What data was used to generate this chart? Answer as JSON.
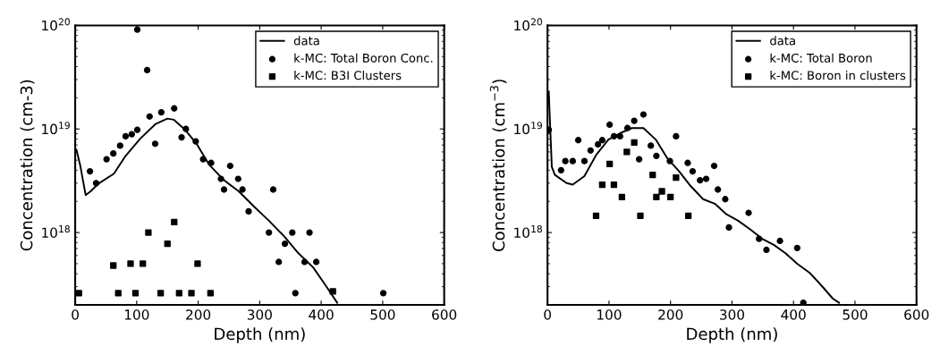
{
  "chart_data": [
    {
      "type": "line",
      "xlabel": "Depth (nm)",
      "ylabel": "Concentration (cm-3)",
      "log": "y",
      "xlim": [
        0,
        600
      ],
      "xticks": [
        0,
        100,
        200,
        300,
        400,
        500,
        600
      ],
      "ylim": [
        2e+17,
        1e+20
      ],
      "yticks": [
        {
          "value": 1e+18,
          "label": "10$^{18}$"
        },
        {
          "value": 1e+19,
          "label": "10$^{19}$"
        },
        {
          "value": 1e+20,
          "label": "10$^{20}$"
        }
      ],
      "grid": false,
      "legend": "top right",
      "series": [
        {
          "name": "data",
          "color": "#000000",
          "line_style": "solid",
          "marker": "none",
          "x": [
            2,
            8,
            17,
            25,
            39,
            63,
            82,
            106,
            131,
            150,
            160,
            179,
            198,
            218,
            242,
            266,
            290,
            315,
            339,
            363,
            387,
            407,
            426
          ],
          "values": [
            6.3e+18,
            4.5e+18,
            2.3e+18,
            2.5e+18,
            3e+18,
            3.7e+18,
            5.5e+18,
            8.1e+18,
            1.12e+19,
            1.26e+19,
            1.23e+19,
            9.8e+18,
            7.1e+18,
            4.5e+18,
            3.2e+18,
            2.5e+18,
            1.8e+18,
            1.3e+18,
            9.3e+17,
            6.3e+17,
            4.6e+17,
            3.1e+17,
            2.1e+17
          ]
        },
        {
          "name": "k-MC: Total Boron Conc.",
          "type": "scatter",
          "color": "#000000",
          "marker": "circle",
          "x": [
            24,
            34,
            51,
            62,
            73,
            82,
            92,
            101,
            101,
            117,
            121,
            130,
            140,
            161,
            173,
            180,
            196,
            208,
            221,
            237,
            242,
            252,
            265,
            272,
            282,
            315,
            322,
            331,
            341,
            353,
            358,
            373,
            381,
            392,
            416,
            501
          ],
          "values": [
            3.9e+18,
            3e+18,
            5.1e+18,
            5.8e+18,
            6.9e+18,
            8.5e+18,
            8.9e+18,
            9.8e+18,
            9.1e+19,
            3.7e+19,
            1.32e+19,
            7.2e+18,
            1.45e+19,
            1.58e+19,
            8.3e+18,
            1e+19,
            7.6e+18,
            5.1e+18,
            4.7e+18,
            3.3e+18,
            2.6e+18,
            4.4e+18,
            3.3e+18,
            2.6e+18,
            1.6e+18,
            1e+18,
            2.6e+18,
            5.2e+17,
            7.8e+17,
            1e+18,
            2.6e+17,
            5.2e+17,
            1e+18,
            5.2e+17,
            null,
            2.6e+17
          ]
        },
        {
          "name": "k-MC: B3I Clusters",
          "type": "scatter",
          "color": "#000000",
          "marker": "square",
          "x": [
            6,
            62,
            70,
            90,
            98,
            110,
            119,
            139,
            150,
            161,
            169,
            189,
            199,
            220,
            419
          ],
          "values": [
            2.6e+17,
            4.8e+17,
            2.6e+17,
            5e+17,
            2.6e+17,
            5e+17,
            1e+18,
            2.6e+17,
            7.8e+17,
            1.26e+18,
            2.6e+17,
            2.6e+17,
            5e+17,
            2.6e+17,
            2.7e+17
          ]
        }
      ]
    },
    {
      "type": "line",
      "xlabel": "Depth (nm)",
      "ylabel": "Concentration (cm$^{−3}$)",
      "log": "y",
      "xlim": [
        0,
        600
      ],
      "xticks": [
        0,
        100,
        200,
        300,
        400,
        500,
        600
      ],
      "ylim": [
        2e+17,
        1e+20
      ],
      "yticks": [
        {
          "value": 1e+18,
          "label": "10$^{18}$"
        },
        {
          "value": 1e+19,
          "label": "10$^{19}$"
        },
        {
          "value": 1e+20,
          "label": "10$^{20}$"
        }
      ],
      "grid": false,
      "legend": "top right",
      "series": [
        {
          "name": "data",
          "color": "#000000",
          "line_style": "solid",
          "marker": "none",
          "x": [
            2,
            7,
            12,
            31,
            41,
            60,
            79,
            99,
            118,
            137,
            156,
            176,
            195,
            214,
            233,
            253,
            272,
            291,
            310,
            330,
            349,
            368,
            387,
            406,
            426,
            445,
            464,
            474
          ],
          "values": [
            2.3e+19,
            4.3e+18,
            3.6e+18,
            3e+18,
            2.9e+18,
            3.5e+18,
            5.6e+18,
            7.9e+18,
            9.1e+18,
            1.02e+19,
            1.02e+19,
            7.9e+18,
            5.2e+18,
            3.9e+18,
            2.8e+18,
            2.1e+18,
            1.9e+18,
            1.5e+18,
            1.3e+18,
            1.07e+18,
            8.7e+17,
            7.6e+17,
            6.3e+17,
            5e+17,
            4.1e+17,
            3.1e+17,
            2.3e+17,
            2.1e+17
          ]
        },
        {
          "name": "k-MC: Total Boron",
          "type": "scatter",
          "color": "#000000",
          "marker": "circle",
          "x": [
            2,
            22,
            29,
            41,
            50,
            60,
            70,
            82,
            89,
            101,
            108,
            118,
            130,
            141,
            149,
            156,
            168,
            177,
            199,
            209,
            228,
            236,
            248,
            258,
            271,
            277,
            289,
            295,
            327,
            344,
            356,
            378,
            406,
            416
          ],
          "values": [
            9.8e+18,
            4e+18,
            4.9e+18,
            4.9e+18,
            7.8e+18,
            4.9e+18,
            6.2e+18,
            7.1e+18,
            7.8e+18,
            1.1e+19,
            8.5e+18,
            8.5e+18,
            1.02e+19,
            1.2e+19,
            5.1e+18,
            1.38e+19,
            6.9e+18,
            5.5e+18,
            4.9e+18,
            8.5e+18,
            4.7e+18,
            3.9e+18,
            3.2e+18,
            3.3e+18,
            4.4e+18,
            2.6e+18,
            2.1e+18,
            1.12e+18,
            1.55e+18,
            8.7e+17,
            6.8e+17,
            8.3e+17,
            7.1e+17,
            2.1e+17
          ]
        },
        {
          "name": "k-MC: Boron in clusters",
          "type": "scatter",
          "color": "#000000",
          "marker": "square",
          "x": [
            79,
            89,
            101,
            108,
            121,
            129,
            141,
            151,
            171,
            177,
            186,
            200,
            209,
            229
          ],
          "values": [
            1.45e+18,
            2.9e+18,
            4.6e+18,
            2.9e+18,
            2.2e+18,
            6e+18,
            7.4e+18,
            1.45e+18,
            3.6e+18,
            2.2e+18,
            2.5e+18,
            2.2e+18,
            3.4e+18,
            1.45e+18
          ]
        }
      ]
    }
  ]
}
